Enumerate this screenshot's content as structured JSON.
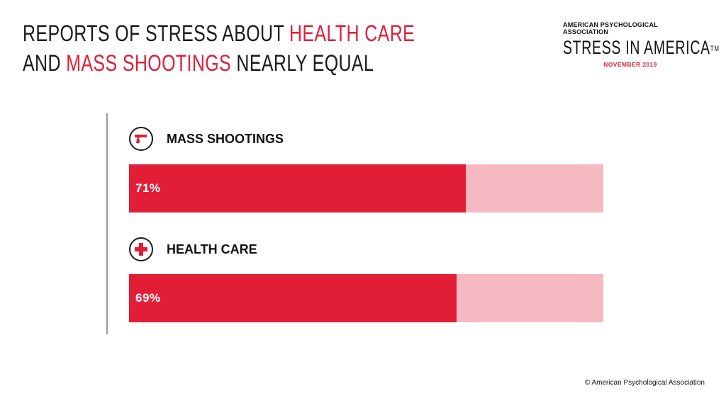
{
  "header": {
    "title_line1_prefix": "REPORTS OF STRESS ABOUT ",
    "title_line1_highlight": "HEALTH CARE",
    "title_line2_prefix": "AND ",
    "title_line2_highlight": "MASS SHOOTINGS",
    "title_line2_suffix": " NEARLY EQUAL"
  },
  "brand": {
    "org": "AMERICAN PSYCHOLOGICAL ASSOCIATION",
    "name": "STRESS IN AMERICA",
    "trademark": "TM",
    "date": "NOVEMBER 2019"
  },
  "colors": {
    "accent": "#e21e36",
    "track": "#f6b8c1",
    "text": "#111111"
  },
  "chart_data": {
    "type": "bar",
    "orientation": "horizontal",
    "categories": [
      "MASS SHOOTINGS",
      "HEALTH CARE"
    ],
    "values": [
      71,
      69
    ],
    "value_labels": [
      "71%",
      "69%"
    ],
    "icons": [
      "gun-icon",
      "medical-cross-icon"
    ],
    "xlim": [
      0,
      100
    ],
    "title": "",
    "xlabel": "",
    "ylabel": "",
    "grid": false,
    "legend": "none"
  },
  "footer": {
    "copyright": "© American Psychological Association"
  }
}
